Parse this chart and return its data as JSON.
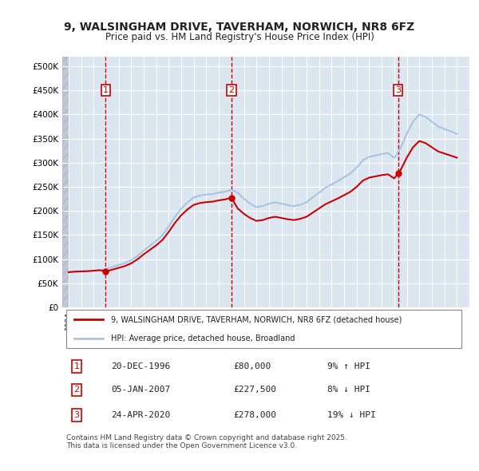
{
  "title": "9, WALSINGHAM DRIVE, TAVERHAM, NORWICH, NR8 6FZ",
  "subtitle": "Price paid vs. HM Land Registry's House Price Index (HPI)",
  "ylabel_ticks": [
    "£0",
    "£50K",
    "£100K",
    "£150K",
    "£200K",
    "£250K",
    "£300K",
    "£350K",
    "£400K",
    "£450K",
    "£500K"
  ],
  "ytick_vals": [
    0,
    50000,
    100000,
    150000,
    200000,
    250000,
    300000,
    350000,
    400000,
    450000,
    500000
  ],
  "ylim": [
    0,
    520000
  ],
  "xlim_start": 1993.5,
  "xlim_end": 2026,
  "background_color": "#ffffff",
  "plot_bg_color": "#dce6f1",
  "hatch_area_color": "#c0c8d8",
  "grid_color": "#ffffff",
  "purchase_color": "#cc0000",
  "hpi_color": "#a8c4e0",
  "sale_marker_color": "#cc0000",
  "transactions": [
    {
      "num": 1,
      "date_label": "20-DEC-1996",
      "date_x": 1996.97,
      "price": 80000,
      "pct": "9%",
      "dir": "↑"
    },
    {
      "num": 2,
      "date_label": "05-JAN-2007",
      "date_x": 2007.01,
      "price": 227500,
      "pct": "8%",
      "dir": "↓"
    },
    {
      "num": 3,
      "date_label": "24-APR-2020",
      "date_x": 2020.31,
      "price": 278000,
      "pct": "19%",
      "dir": "↓"
    }
  ],
  "legend_house_label": "9, WALSINGHAM DRIVE, TAVERHAM, NORWICH, NR8 6FZ (detached house)",
  "legend_hpi_label": "HPI: Average price, detached house, Broadland",
  "footer": "Contains HM Land Registry data © Crown copyright and database right 2025.\nThis data is licensed under the Open Government Licence v3.0.",
  "table_rows": [
    {
      "num": 1,
      "date": "20-DEC-1996",
      "price": "£80,000",
      "pct_hpi": "9% ↑ HPI"
    },
    {
      "num": 2,
      "date": "05-JAN-2007",
      "price": "£227,500",
      "pct_hpi": "8% ↓ HPI"
    },
    {
      "num": 3,
      "date": "24-APR-2020",
      "price": "£278,000",
      "pct_hpi": "19% ↓ HPI"
    }
  ]
}
